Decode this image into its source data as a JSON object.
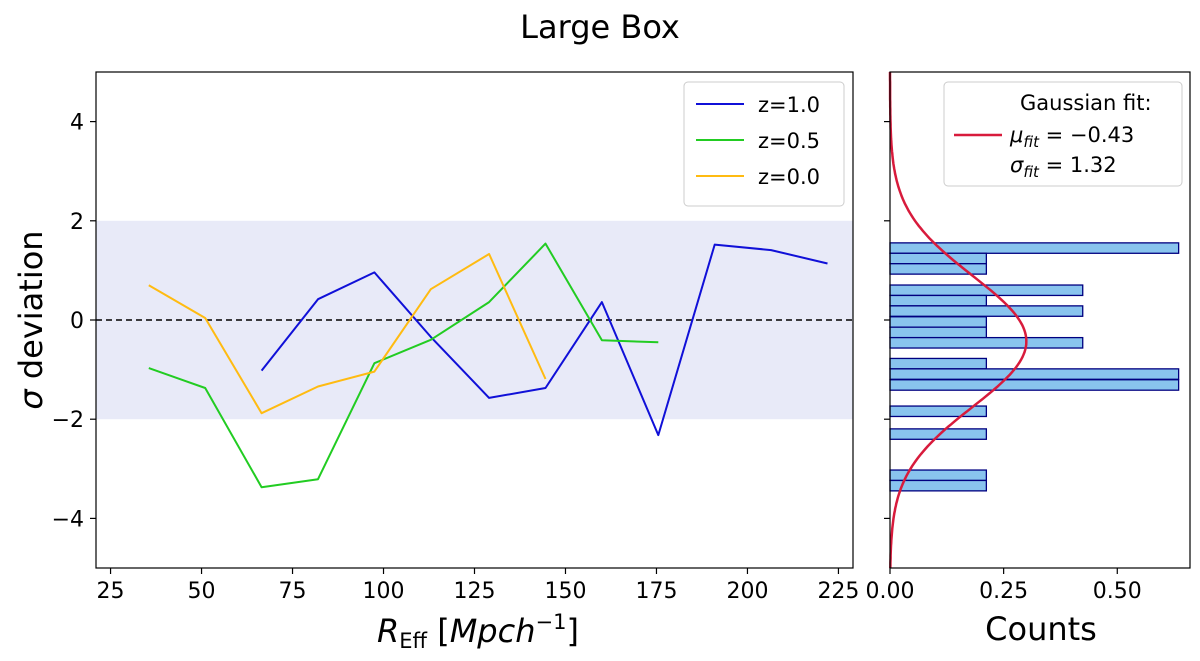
{
  "figure": {
    "title": "Large Box"
  },
  "chart_data": [
    {
      "type": "line",
      "xlabel": "R_Eff [Mpch^-1]",
      "ylabel": "σ deviation",
      "xlim": [
        21,
        229
      ],
      "ylim": [
        -5,
        5
      ],
      "xticks": [
        25,
        50,
        75,
        100,
        125,
        150,
        175,
        200,
        225
      ],
      "yticks": [
        -4,
        -2,
        0,
        2,
        4
      ],
      "band": {
        "y0": -2,
        "y1": 2,
        "color": "#e8eaf8"
      },
      "hline": {
        "y": 0,
        "style": "dashed",
        "color": "#000000"
      },
      "legend_position": "top-right",
      "series": [
        {
          "name": "z=1.0",
          "color": "#1010d8",
          "x": [
            66.5,
            82,
            97.5,
            113,
            129,
            144.5,
            160,
            175.5,
            191,
            206.5,
            222
          ],
          "y": [
            -1.02,
            0.42,
            0.96,
            -0.34,
            -1.57,
            -1.37,
            0.36,
            -2.32,
            1.52,
            1.41,
            1.14
          ]
        },
        {
          "name": "z=0.5",
          "color": "#22cc22",
          "x": [
            35.5,
            51,
            66.5,
            82,
            97.5,
            113,
            129,
            144.5,
            160,
            175.5
          ],
          "y": [
            -0.97,
            -1.37,
            -3.37,
            -3.21,
            -0.87,
            -0.4,
            0.36,
            1.54,
            -0.41,
            -0.45
          ]
        },
        {
          "name": "z=0.0",
          "color": "#ffbb11",
          "x": [
            35.5,
            51,
            66.5,
            82,
            97.5,
            113,
            129,
            144.5
          ],
          "y": [
            0.7,
            0.04,
            -1.88,
            -1.34,
            -1.04,
            0.62,
            1.33,
            -1.19
          ]
        }
      ]
    },
    {
      "type": "bar",
      "orientation": "horizontal",
      "xlabel": "Counts",
      "xlim": [
        0,
        0.66
      ],
      "ylim": [
        -5,
        5
      ],
      "xticks": [
        0.0,
        0.25,
        0.5
      ],
      "xtick_labels": [
        "0.00",
        "0.25",
        "0.50"
      ],
      "bar_color": "#89c4ee",
      "bar_edge_color": "#000080",
      "bars": [
        {
          "y_center": 1.45,
          "value": 0.635
        },
        {
          "y_center": 1.24,
          "value": 0.212
        },
        {
          "y_center": 1.03,
          "value": 0.212
        },
        {
          "y_center": 0.6,
          "value": 0.424
        },
        {
          "y_center": 0.39,
          "value": 0.212
        },
        {
          "y_center": 0.18,
          "value": 0.424
        },
        {
          "y_center": -0.04,
          "value": 0.212
        },
        {
          "y_center": -0.25,
          "value": 0.212
        },
        {
          "y_center": -0.46,
          "value": 0.424
        },
        {
          "y_center": -0.88,
          "value": 0.212
        },
        {
          "y_center": -1.09,
          "value": 0.635
        },
        {
          "y_center": -1.31,
          "value": 0.635
        },
        {
          "y_center": -1.84,
          "value": 0.212
        },
        {
          "y_center": -2.3,
          "value": 0.212
        },
        {
          "y_center": -3.13,
          "value": 0.212
        },
        {
          "y_center": -3.34,
          "value": 0.212
        }
      ],
      "bar_height": 0.21,
      "fit": {
        "name": "Gaussian fit:",
        "mu": -0.43,
        "sigma": 1.32,
        "mu_label": "μ_fit = −0.43",
        "sigma_label": "σ_fit = 1.32",
        "color": "#d81b3c"
      },
      "legend_position": "top-right"
    }
  ]
}
